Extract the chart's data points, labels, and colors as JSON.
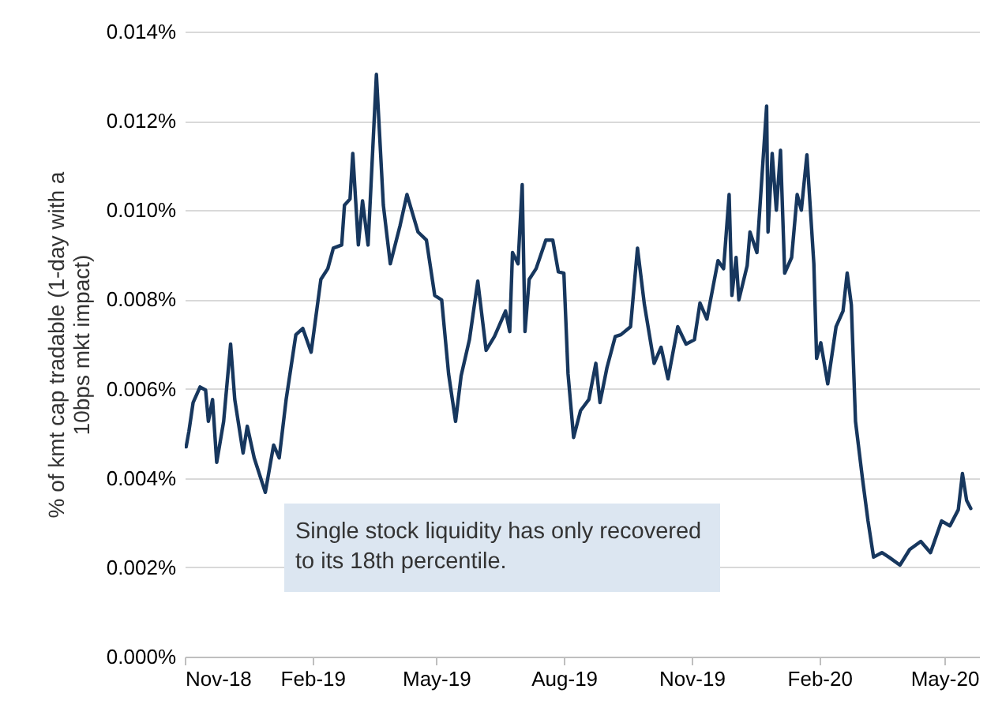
{
  "chart_data": {
    "type": "line",
    "ylabel": "% of kmt cap tradable (1-day with a 10bps mkt impact)",
    "annotations": [
      "Single stock liquidity has only recovered to its 18th percentile."
    ],
    "xlim": [
      "2018-11-01",
      "2020-05-26"
    ],
    "xticks": [
      {
        "value": "2018-11-01",
        "label": "Nov-18"
      },
      {
        "value": "2019-02-01",
        "label": "Feb-19"
      },
      {
        "value": "2019-05-01",
        "label": "May-19"
      },
      {
        "value": "2019-08-01",
        "label": "Aug-19"
      },
      {
        "value": "2019-11-01",
        "label": "Nov-19"
      },
      {
        "value": "2020-02-01",
        "label": "Feb-20"
      },
      {
        "value": "2020-05-01",
        "label": "May-20"
      }
    ],
    "ylim": [
      0,
      0.014
    ],
    "yticks": [
      {
        "value": 0,
        "label": "0.000%"
      },
      {
        "value": 0.002,
        "label": "0.002%"
      },
      {
        "value": 0.004,
        "label": "0.004%"
      },
      {
        "value": 0.006,
        "label": "0.006%"
      },
      {
        "value": 0.008,
        "label": "0.008%"
      },
      {
        "value": 0.01,
        "label": "0.010%"
      },
      {
        "value": 0.012,
        "label": "0.012%"
      },
      {
        "value": 0.014,
        "label": "0.014%"
      }
    ],
    "grid": "y",
    "line_style": "solid",
    "x": [
      "2018-11-02",
      "2018-11-04",
      "2018-11-07",
      "2018-11-12",
      "2018-11-16",
      "2018-11-18",
      "2018-11-21",
      "2018-11-24",
      "2018-11-29",
      "2018-12-04",
      "2018-12-07",
      "2018-12-13",
      "2018-12-16",
      "2018-12-21",
      "2018-12-29",
      "2019-01-04",
      "2019-01-08",
      "2019-01-13",
      "2019-01-20",
      "2019-01-25",
      "2019-01-31",
      "2019-02-07",
      "2019-02-12",
      "2019-02-16",
      "2019-02-22",
      "2019-02-24",
      "2019-02-28",
      "2019-03-02",
      "2019-03-06",
      "2019-03-09",
      "2019-03-13",
      "2019-03-19",
      "2019-03-24",
      "2019-03-29",
      "2019-04-05",
      "2019-04-10",
      "2019-04-18",
      "2019-04-24",
      "2019-04-30",
      "2019-05-05",
      "2019-05-10",
      "2019-05-15",
      "2019-05-19",
      "2019-05-25",
      "2019-05-31",
      "2019-06-06",
      "2019-06-12",
      "2019-06-20",
      "2019-06-23",
      "2019-06-25",
      "2019-06-29",
      "2019-07-02",
      "2019-07-04",
      "2019-07-07",
      "2019-07-12",
      "2019-07-19",
      "2019-07-24",
      "2019-07-28",
      "2019-08-01",
      "2019-08-04",
      "2019-08-08",
      "2019-08-13",
      "2019-08-19",
      "2019-08-24",
      "2019-08-27",
      "2019-09-01",
      "2019-09-07",
      "2019-09-11",
      "2019-09-18",
      "2019-09-23",
      "2019-09-28",
      "2019-10-05",
      "2019-10-10",
      "2019-10-15",
      "2019-10-22",
      "2019-10-28",
      "2019-11-03",
      "2019-11-07",
      "2019-11-12",
      "2019-11-20",
      "2019-11-24",
      "2019-11-28",
      "2019-11-30",
      "2019-12-03",
      "2019-12-05",
      "2019-12-11",
      "2019-12-13",
      "2019-12-18",
      "2019-12-25",
      "2019-12-26",
      "2019-12-29",
      "2020-01-01",
      "2020-01-04",
      "2020-01-07",
      "2020-01-12",
      "2020-01-16",
      "2020-01-19",
      "2020-01-23",
      "2020-01-28",
      "2020-01-30",
      "2020-02-02",
      "2020-02-07",
      "2020-02-13",
      "2020-02-18",
      "2020-02-21",
      "2020-02-24",
      "2020-02-27",
      "2020-03-03",
      "2020-03-07",
      "2020-03-11",
      "2020-03-17",
      "2020-03-22",
      "2020-03-30",
      "2020-04-06",
      "2020-04-14",
      "2020-04-21",
      "2020-04-29",
      "2020-05-05",
      "2020-05-11",
      "2020-05-14",
      "2020-05-17",
      "2020-05-20"
    ],
    "series": [
      {
        "color": "#17375e",
        "values": [
          0.0047,
          0.00505,
          0.00569,
          0.00604,
          0.00597,
          0.00527,
          0.00576,
          0.00435,
          0.00527,
          0.007,
          0.00576,
          0.00456,
          0.00516,
          0.00445,
          0.00368,
          0.00474,
          0.00445,
          0.00576,
          0.00721,
          0.00735,
          0.00682,
          0.00845,
          0.00869,
          0.00915,
          0.00922,
          0.01011,
          0.01025,
          0.01127,
          0.00922,
          0.01021,
          0.00922,
          0.01304,
          0.01011,
          0.0088,
          0.00965,
          0.01035,
          0.00951,
          0.00933,
          0.00809,
          0.00799,
          0.00633,
          0.00527,
          0.00629,
          0.0071,
          0.00841,
          0.00686,
          0.00717,
          0.00774,
          0.00728,
          0.00905,
          0.0088,
          0.01057,
          0.00728,
          0.00845,
          0.00869,
          0.00933,
          0.00933,
          0.00862,
          0.00859,
          0.00633,
          0.00491,
          0.00551,
          0.00576,
          0.00657,
          0.00569,
          0.00647,
          0.00717,
          0.00721,
          0.00739,
          0.00915,
          0.00788,
          0.00657,
          0.00693,
          0.00622,
          0.00739,
          0.007,
          0.0071,
          0.00792,
          0.00756,
          0.00887,
          0.00869,
          0.01035,
          0.00809,
          0.00894,
          0.00799,
          0.00876,
          0.00951,
          0.00905,
          0.01233,
          0.00951,
          0.01127,
          0.01,
          0.01134,
          0.00859,
          0.00894,
          0.01035,
          0.01,
          0.01124,
          0.0088,
          0.00668,
          0.00703,
          0.00611,
          0.00739,
          0.00774,
          0.00859,
          0.00788,
          0.00527,
          0.00399,
          0.00304,
          0.00223,
          0.00233,
          0.00223,
          0.00205,
          0.0024,
          0.00258,
          0.00233,
          0.00304,
          0.00293,
          0.00329,
          0.0041,
          0.0035,
          0.00332
        ]
      }
    ]
  }
}
